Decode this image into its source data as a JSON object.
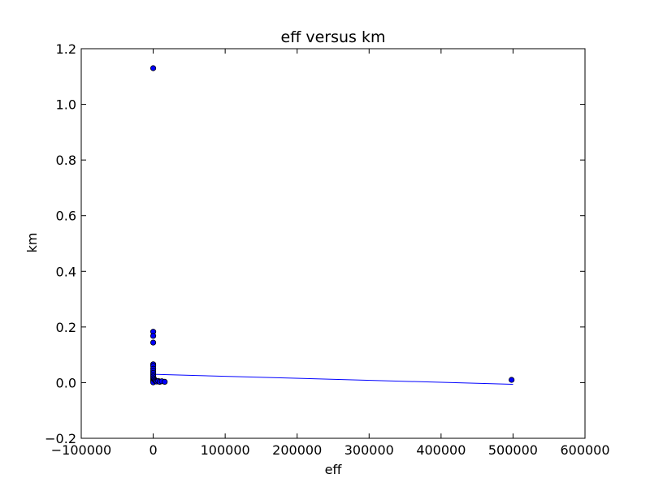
{
  "chart_data": {
    "type": "scatter",
    "title": "eff versus km",
    "xlabel": "eff",
    "ylabel": "km",
    "xlim": [
      -100000,
      600000
    ],
    "ylim": [
      -0.2,
      1.2
    ],
    "xticks": [
      -100000,
      0,
      100000,
      200000,
      300000,
      400000,
      500000,
      600000
    ],
    "xtick_labels": [
      "−100000",
      "0",
      "100000",
      "200000",
      "300000",
      "400000",
      "500000",
      "600000"
    ],
    "yticks": [
      -0.2,
      0.0,
      0.2,
      0.4,
      0.6,
      0.8,
      1.0,
      1.2
    ],
    "ytick_labels": [
      "−0.2",
      "0.0",
      "0.2",
      "0.4",
      "0.6",
      "0.8",
      "1.0",
      "1.2"
    ],
    "grid": false,
    "series": [
      {
        "kind": "scatter",
        "marker_color": "#0000ff",
        "edge_color": "#000000",
        "points": [
          [
            0,
            1.13
          ],
          [
            0,
            0.183
          ],
          [
            0,
            0.168
          ],
          [
            0,
            0.144
          ],
          [
            0,
            0.066
          ],
          [
            0,
            0.06
          ],
          [
            0,
            0.05
          ],
          [
            0,
            0.042
          ],
          [
            0,
            0.035
          ],
          [
            0,
            0.028
          ],
          [
            0,
            0.022
          ],
          [
            0,
            0.016
          ],
          [
            0,
            0.01
          ],
          [
            0,
            0.005
          ],
          [
            0,
            0.001
          ],
          [
            1500,
            0.012
          ],
          [
            2500,
            0.008
          ],
          [
            3500,
            0.005
          ],
          [
            5000,
            0.004
          ],
          [
            7000,
            0.006
          ],
          [
            9000,
            0.003
          ],
          [
            12000,
            0.005
          ],
          [
            16000,
            0.003
          ],
          [
            498000,
            0.01
          ]
        ]
      },
      {
        "kind": "line",
        "line_color": "#0000ff",
        "points": [
          [
            0,
            0.03
          ],
          [
            500000,
            -0.006
          ]
        ]
      }
    ]
  }
}
